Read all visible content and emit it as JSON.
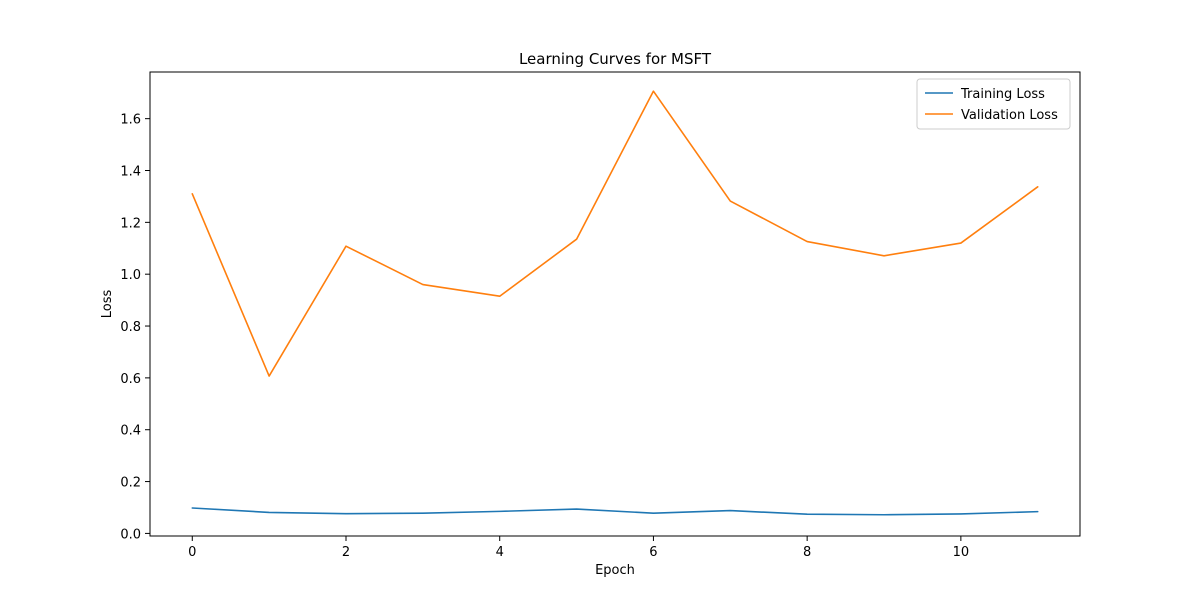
{
  "chart_data": {
    "type": "line",
    "title": "Learning Curves for MSFT",
    "xlabel": "Epoch",
    "ylabel": "Loss",
    "x": [
      0,
      1,
      2,
      3,
      4,
      5,
      6,
      7,
      8,
      9,
      10,
      11
    ],
    "xlim": [
      -0.55,
      11.55
    ],
    "ylim": [
      -0.01,
      1.78
    ],
    "xticks": [
      0,
      2,
      4,
      6,
      8,
      10
    ],
    "yticks": [
      0.0,
      0.2,
      0.4,
      0.6,
      0.8,
      1.0,
      1.2,
      1.4,
      1.6
    ],
    "grid": false,
    "legend_position": "top-right",
    "series": [
      {
        "name": "Training Loss",
        "color": "#1f77b4",
        "values": [
          0.098,
          0.081,
          0.076,
          0.078,
          0.085,
          0.094,
          0.078,
          0.088,
          0.074,
          0.072,
          0.075,
          0.084
        ]
      },
      {
        "name": "Validation Loss",
        "color": "#ff7f0e",
        "values": [
          1.31,
          0.607,
          1.108,
          0.96,
          0.915,
          1.135,
          1.706,
          1.282,
          1.126,
          1.071,
          1.12,
          1.337
        ]
      }
    ]
  }
}
